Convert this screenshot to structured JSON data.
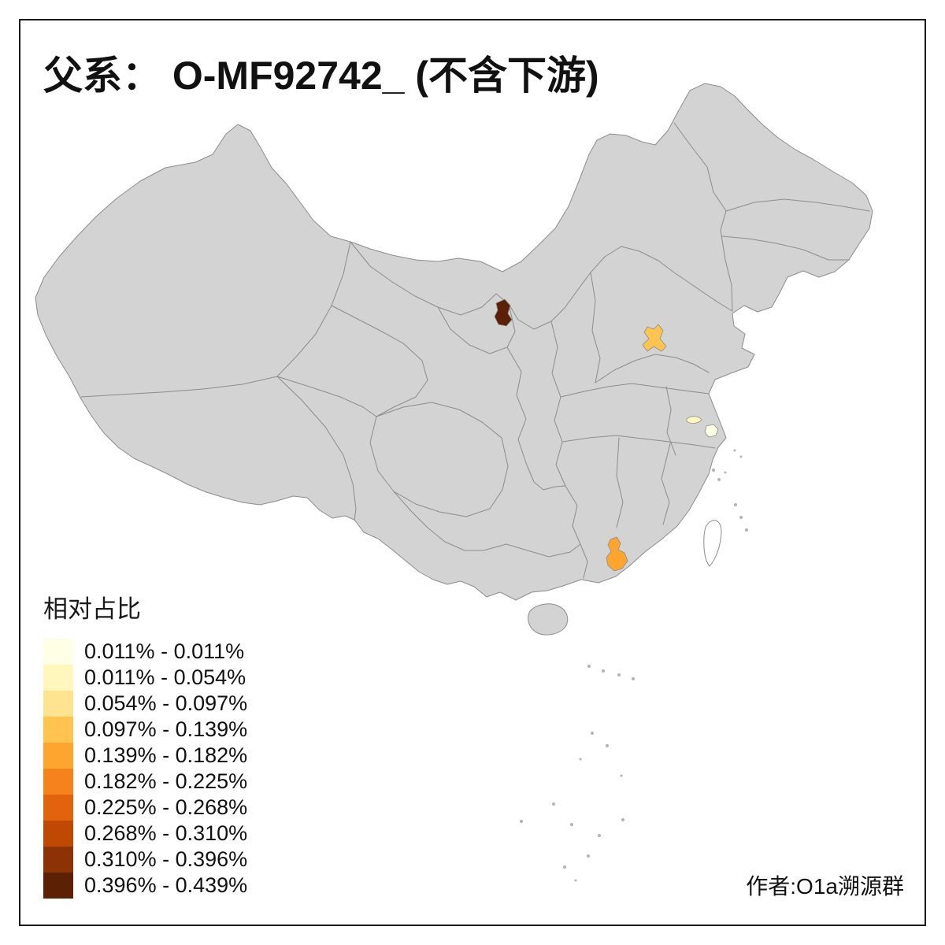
{
  "page": {
    "title": "父系： O-MF92742_ (不含下游)",
    "author": "作者:O1a溯源群",
    "background": "#FFFFFF",
    "frame_color": "#1A1A1A"
  },
  "legend": {
    "title": "相对占比",
    "classes": [
      {
        "label": "0.011% - 0.011%",
        "color": "#FFFFE5"
      },
      {
        "label": "0.011% - 0.054%",
        "color": "#FFF7BC"
      },
      {
        "label": "0.054% - 0.097%",
        "color": "#FEE391"
      },
      {
        "label": "0.097% - 0.139%",
        "color": "#FEC44F"
      },
      {
        "label": "0.139% - 0.182%",
        "color": "#FEA52F"
      },
      {
        "label": "0.182% - 0.225%",
        "color": "#F5821D"
      },
      {
        "label": "0.225% - 0.268%",
        "color": "#E2630B"
      },
      {
        "label": "0.268% - 0.310%",
        "color": "#BF4803"
      },
      {
        "label": "0.310% - 0.396%",
        "color": "#8C3204"
      },
      {
        "label": "0.396% - 0.439%",
        "color": "#5C2105"
      }
    ]
  },
  "map": {
    "base_fill": "#D3D3D3",
    "boundary_color": "#8C8C8C",
    "highlighted_regions": [
      {
        "name": "ningxia",
        "color": "#5C2105",
        "legend_class": "0.396% - 0.439%"
      },
      {
        "name": "shandong",
        "color": "#FEC44F",
        "legend_class": "0.097% - 0.139%"
      },
      {
        "name": "jiangsu",
        "color": "#FFF7BC",
        "legend_class": "0.011% - 0.054%"
      },
      {
        "name": "shanghai",
        "color": "#FFFFE5",
        "legend_class": "0.011% - 0.011%"
      },
      {
        "name": "guangdong",
        "color": "#FEA52F",
        "legend_class": "0.139% - 0.182%"
      }
    ]
  }
}
